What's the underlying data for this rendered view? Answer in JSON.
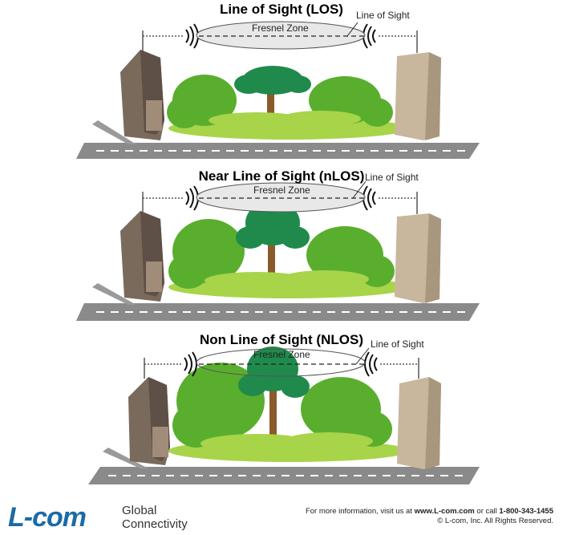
{
  "panels": [
    {
      "title": "Line of Sight (LOS)",
      "fresnel": "Fresnel Zone",
      "los": "Line of Sight"
    },
    {
      "title": "Near Line of Sight (nLOS)",
      "fresnel": "Fresnel Zone",
      "los": "Line of Sight"
    },
    {
      "title": "Non Line of Sight (NLOS)",
      "fresnel": "Fresnel Zone",
      "los": "Line of Sight"
    }
  ],
  "footer": {
    "logo": "L-com",
    "tagline_1": "Global",
    "tagline_2": "Connectivity",
    "info_prefix": "For more information, visit us at",
    "website": "www.L-com.com",
    "info_mid": "or call",
    "phone": "1-800-343-1455",
    "copyright": "© L-com, Inc. All Rights Reserved."
  },
  "colors": {
    "tree_green": "#5aae2e",
    "light_green": "#a8d44a",
    "dark_tree": "#1f8a4c",
    "building_left": "#7a6a5c",
    "building_right": "#c8b79c",
    "road": "#8a8a8a",
    "logo_blue": "#1b6aa8"
  }
}
